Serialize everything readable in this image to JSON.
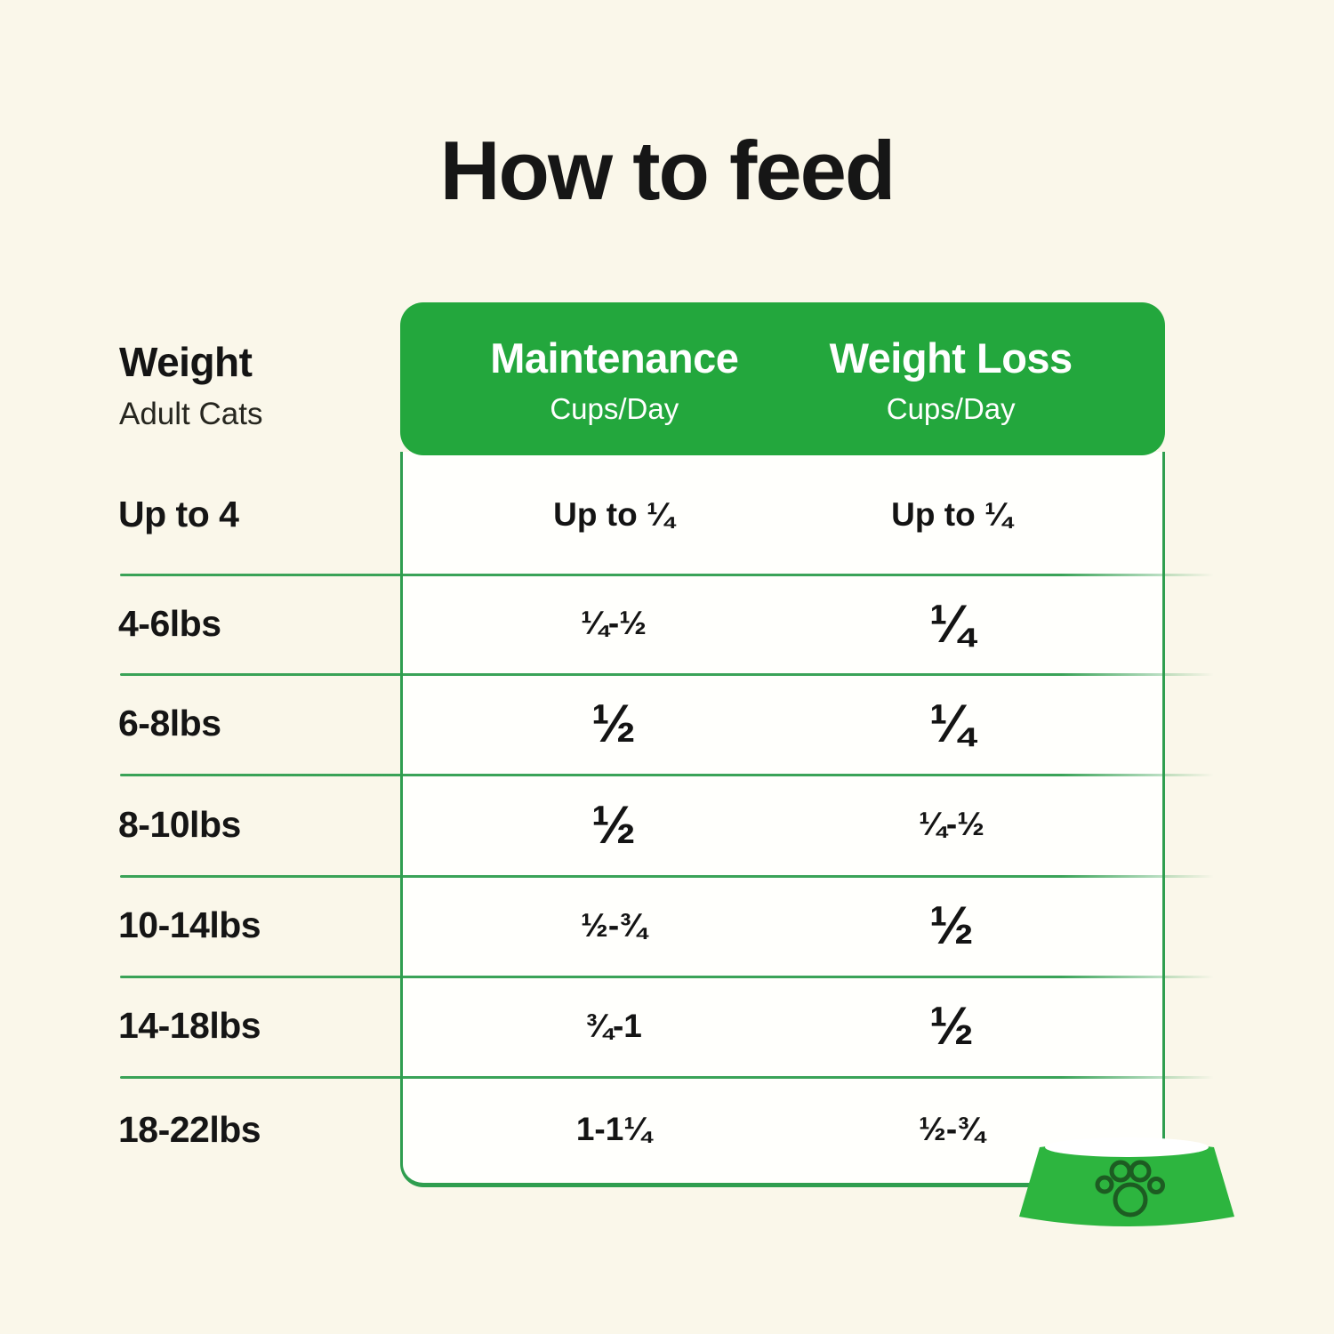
{
  "page": {
    "title": "How to feed",
    "background_color": "#faf7ea",
    "accent_green": "#23a73d",
    "line_green": "#2f9e4f",
    "bowl_green": "#2db53f",
    "paw_outline": "#1d5c22"
  },
  "table": {
    "row_header": {
      "title": "Weight",
      "subtitle": "Adult Cats"
    },
    "columns": [
      {
        "label": "Maintenance",
        "sublabel": "Cups/Day"
      },
      {
        "label": "Weight Loss",
        "sublabel": "Cups/Day"
      }
    ],
    "rows": [
      {
        "weight": "Up to 4",
        "maintenance": "Up to ¼",
        "maintenance_emphasis": "small",
        "weight_loss": "Up to ¼",
        "weight_loss_emphasis": "small"
      },
      {
        "weight": "4-6lbs",
        "maintenance": "¼-½",
        "maintenance_emphasis": "small",
        "weight_loss": "¼",
        "weight_loss_emphasis": "big"
      },
      {
        "weight": "6-8lbs",
        "maintenance": "½",
        "maintenance_emphasis": "big",
        "weight_loss": "¼",
        "weight_loss_emphasis": "big"
      },
      {
        "weight": "8-10lbs",
        "maintenance": "½",
        "maintenance_emphasis": "big",
        "weight_loss": "¼-½",
        "weight_loss_emphasis": "small"
      },
      {
        "weight": "10-14lbs",
        "maintenance": "½-¾",
        "maintenance_emphasis": "small",
        "weight_loss": "½",
        "weight_loss_emphasis": "big"
      },
      {
        "weight": "14-18lbs",
        "maintenance": "¾-1",
        "maintenance_emphasis": "small",
        "weight_loss": "½",
        "weight_loss_emphasis": "big"
      },
      {
        "weight": "18-22lbs",
        "maintenance": "1-1¼",
        "maintenance_emphasis": "small",
        "weight_loss": "½-¾",
        "weight_loss_emphasis": "small"
      }
    ]
  },
  "icons": {
    "bowl": "pet-bowl-with-paw-print"
  },
  "chart_data": {
    "type": "table",
    "title": "How to feed",
    "row_header": {
      "label": "Weight",
      "sublabel": "Adult Cats"
    },
    "columns": [
      "Weight (Adult Cats)",
      "Maintenance Cups/Day",
      "Weight Loss Cups/Day"
    ],
    "rows": [
      [
        "Up to 4",
        "Up to ¼",
        "Up to ¼"
      ],
      [
        "4-6lbs",
        "¼-½",
        "¼"
      ],
      [
        "6-8lbs",
        "½",
        "¼"
      ],
      [
        "8-10lbs",
        "½",
        "¼-½"
      ],
      [
        "10-14lbs",
        "½-¾",
        "½"
      ],
      [
        "14-18lbs",
        "¾-1",
        "½"
      ],
      [
        "18-22lbs",
        "1-1¼",
        "½-¾"
      ]
    ]
  }
}
